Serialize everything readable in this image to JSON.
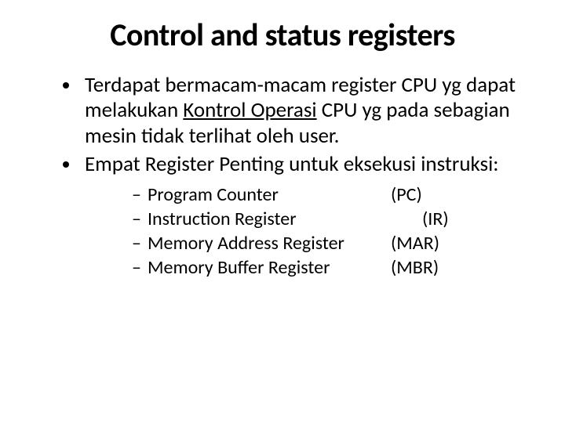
{
  "title": "Control and status registers",
  "bullets": [
    {
      "pre": "Terdapat bermacam-macam register CPU yg dapat melakukan ",
      "underline": "Kontrol Operasi",
      "post": " CPU yg pada sebagian mesin tidak terlihat oleh user."
    },
    {
      "text": "Empat Register Penting untuk eksekusi instruksi:"
    }
  ],
  "sub_items": [
    {
      "label": "Program Counter",
      "abbr": "(PC)",
      "indent": false
    },
    {
      "label": "Instruction Register",
      "abbr": "(IR)",
      "indent": true
    },
    {
      "label": "Memory Address Register",
      "abbr": "(MAR)",
      "indent": false
    },
    {
      "label": "Memory Buffer Register",
      "abbr": "(MBR)",
      "indent": false
    }
  ],
  "colors": {
    "background": "#ffffff",
    "text": "#000000"
  },
  "fonts": {
    "title_size": 40,
    "bullet_size": 27,
    "sub_size": 24
  }
}
